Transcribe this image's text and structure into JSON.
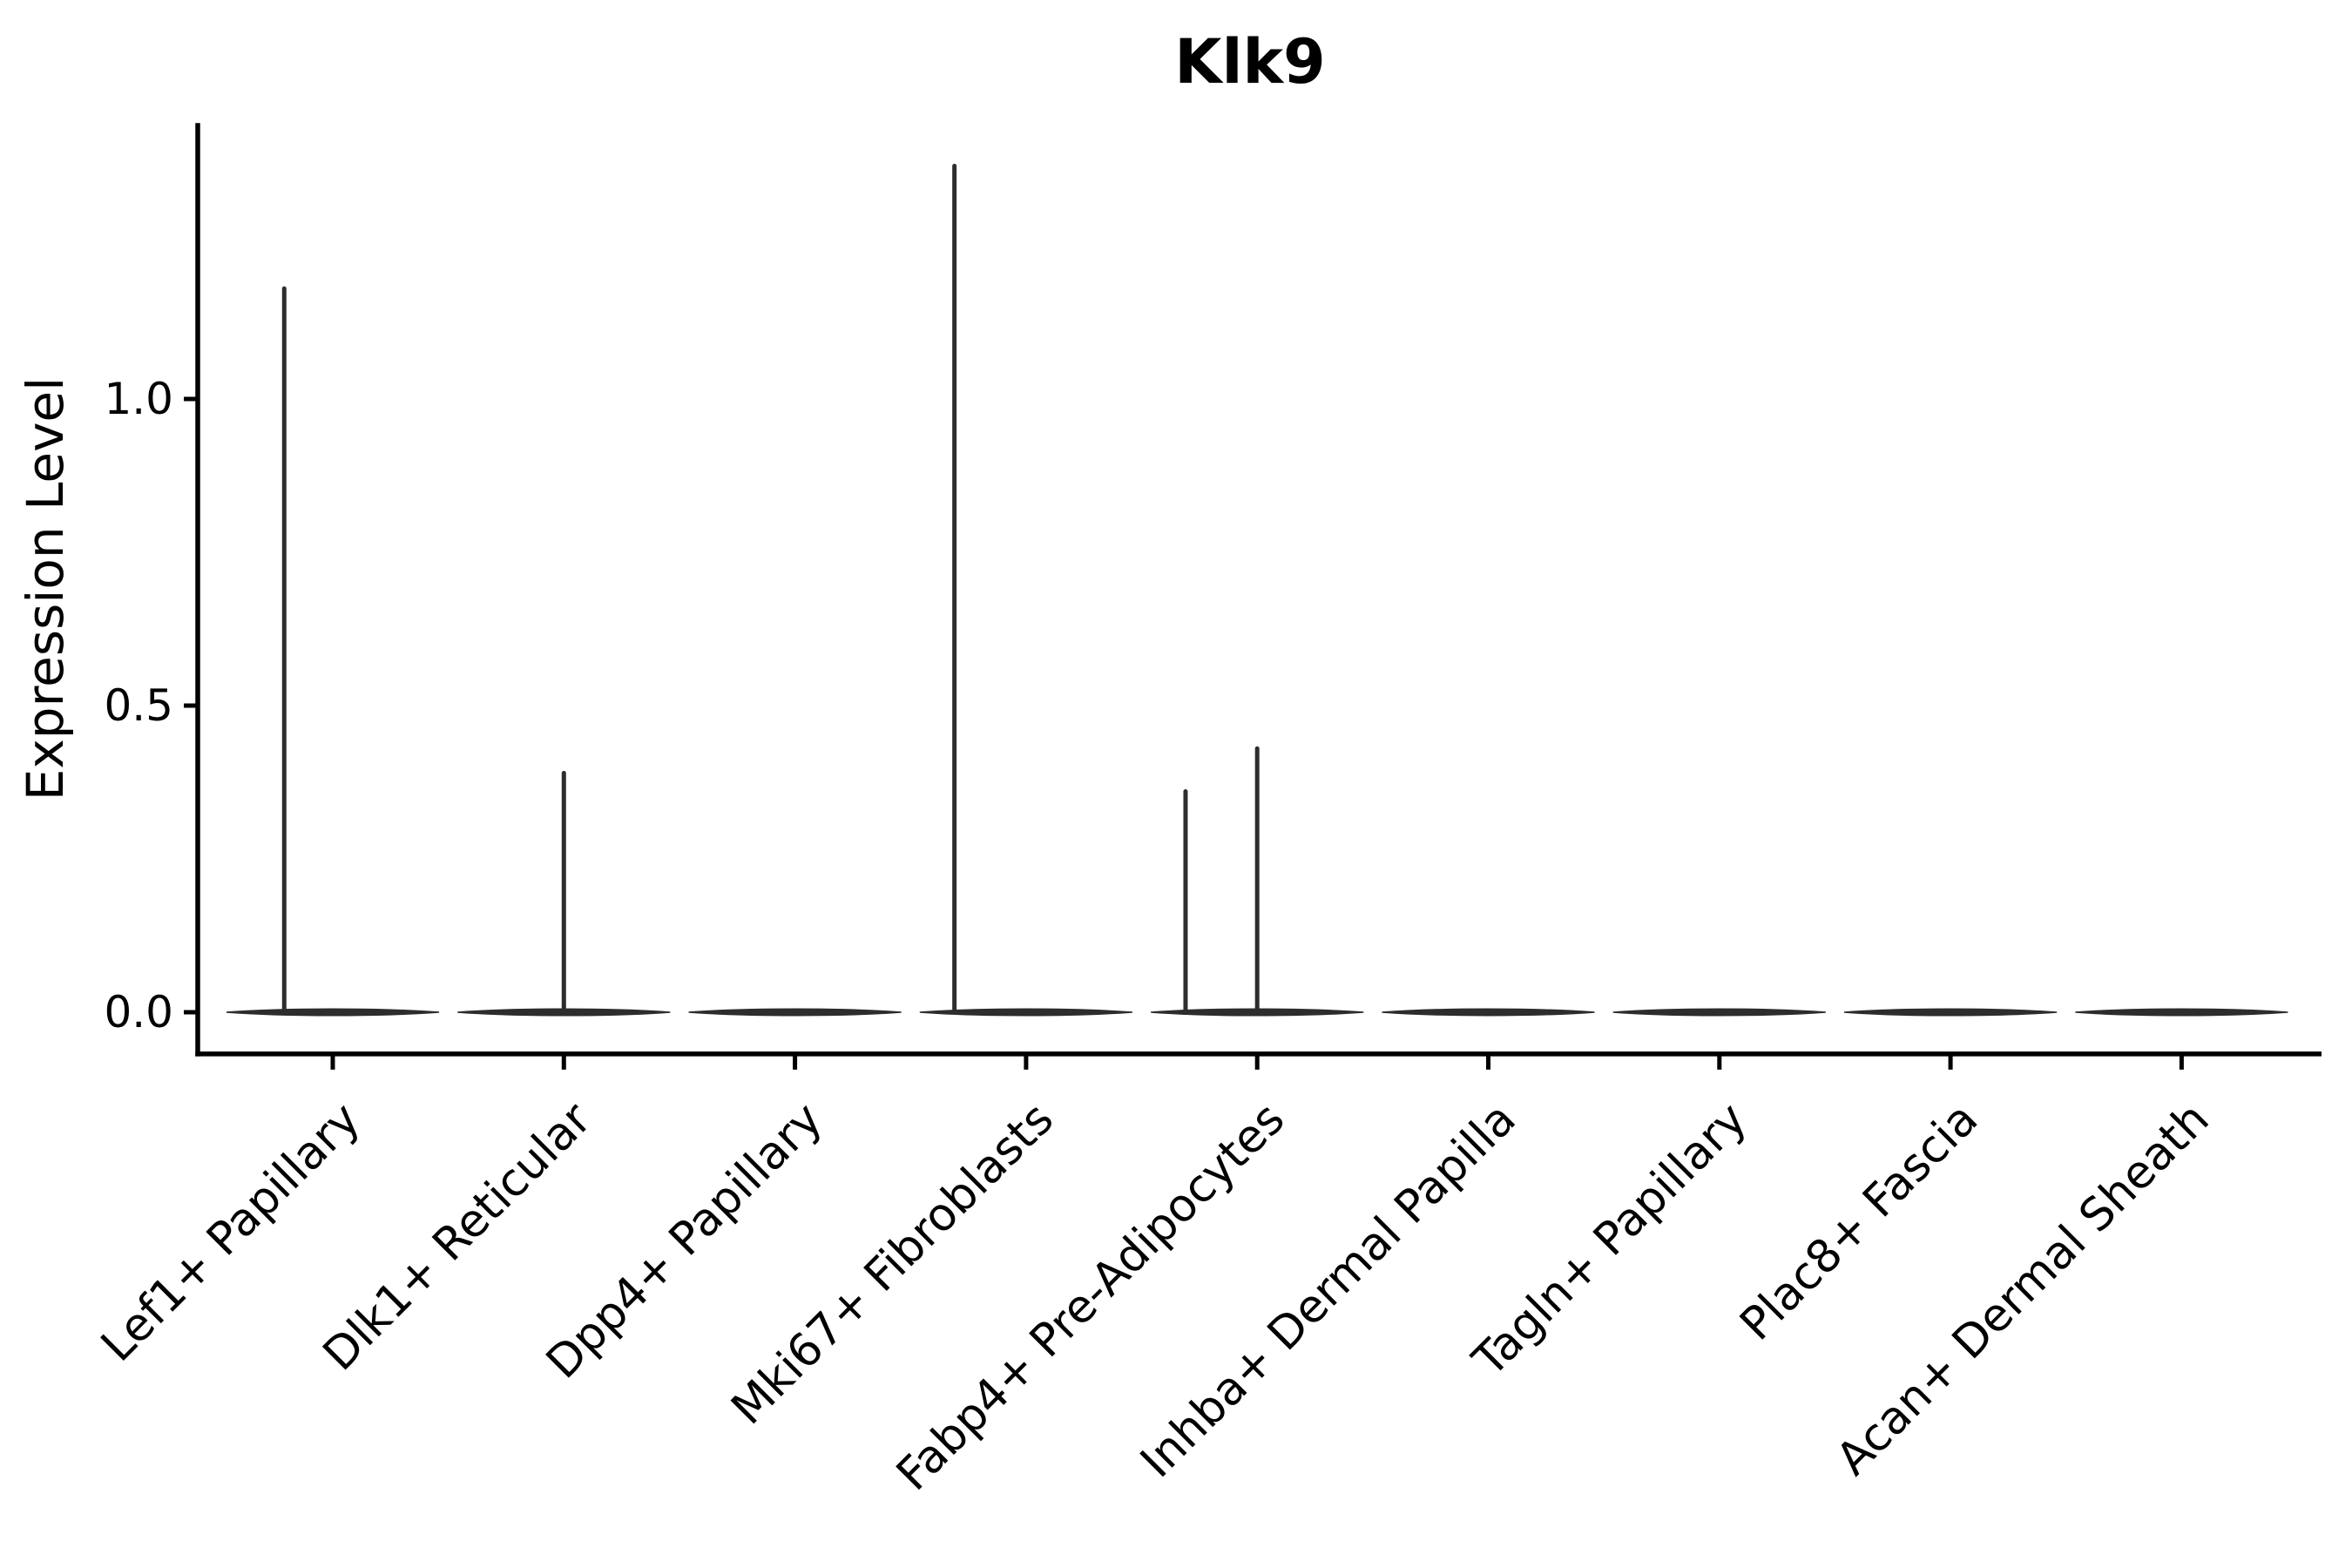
{
  "chart_data": {
    "type": "violin",
    "title": "Klk9",
    "ylabel": "Expression Level",
    "xlabel": "",
    "ylim": [
      -0.068,
      1.45
    ],
    "yticks": [
      {
        "value": 0.0,
        "label": "0.0"
      },
      {
        "value": 0.5,
        "label": "0.5"
      },
      {
        "value": 1.0,
        "label": "1.0"
      }
    ],
    "grid": false,
    "legend": "none",
    "x_label_rotation_deg": 45,
    "categories": [
      "Lef1+ Papillary",
      "Dlk1+ Reticular",
      "Dpp4+ Papillary",
      "Mki67+ Fibroblasts",
      "Fabp4+ Pre-Adipocytes",
      "Inhba+ Dermal Papilla",
      "Tagln+ Papillary",
      "Plac8+ Fascia",
      "Acan+ Dermal Sheath"
    ],
    "violins": [
      {
        "category": "Lef1+ Papillary",
        "baseline_half_width": 0.46,
        "spikes": [
          {
            "offset": -0.21,
            "max": 1.18
          }
        ]
      },
      {
        "category": "Dlk1+ Reticular",
        "baseline_half_width": 0.46,
        "spikes": [
          {
            "offset": 0.0,
            "max": 0.39
          }
        ]
      },
      {
        "category": "Dpp4+ Papillary",
        "baseline_half_width": 0.46,
        "spikes": []
      },
      {
        "category": "Mki67+ Fibroblasts",
        "baseline_half_width": 0.46,
        "spikes": [
          {
            "offset": -0.31,
            "max": 1.38
          }
        ]
      },
      {
        "category": "Fabp4+ Pre-Adipocytes",
        "baseline_half_width": 0.46,
        "spikes": [
          {
            "offset": -0.31,
            "max": 0.36
          },
          {
            "offset": 0.0,
            "max": 0.43
          }
        ]
      },
      {
        "category": "Inhba+ Dermal Papilla",
        "baseline_half_width": 0.46,
        "spikes": []
      },
      {
        "category": "Tagln+ Papillary",
        "baseline_half_width": 0.46,
        "spikes": []
      },
      {
        "category": "Plac8+ Fascia",
        "baseline_half_width": 0.46,
        "spikes": []
      },
      {
        "category": "Acan+ Dermal Sheath",
        "baseline_half_width": 0.46,
        "spikes": []
      }
    ],
    "colors": {
      "violin_stroke": "#2d2d2d",
      "axis": "#000000",
      "text": "#000000",
      "background": "#ffffff"
    }
  }
}
